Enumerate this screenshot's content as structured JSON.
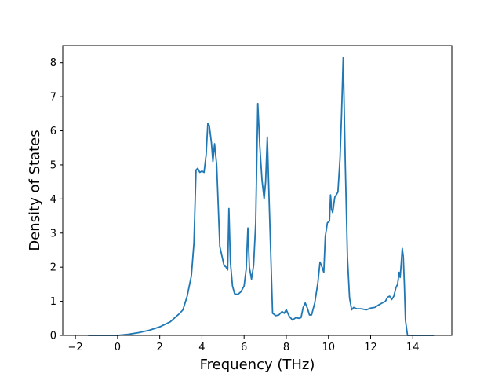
{
  "chart_data": {
    "type": "line",
    "title": "",
    "xlabel": "Frequency (THz)",
    "ylabel": "Density of States",
    "xlim": [
      -2.6,
      15.85
    ],
    "ylim": [
      0,
      8.5
    ],
    "xticks": [
      -2,
      0,
      2,
      4,
      6,
      8,
      10,
      12,
      14
    ],
    "yticks": [
      0,
      1,
      2,
      3,
      4,
      5,
      6,
      7,
      8
    ],
    "grid": false,
    "legend": "none",
    "line_color": "#1f77b4",
    "series": [
      {
        "x": [
          -1.4,
          0.0,
          0.5,
          1.0,
          1.5,
          2.0,
          2.5,
          2.9,
          3.1,
          3.3,
          3.5,
          3.62,
          3.72,
          3.8,
          3.9,
          4.0,
          4.1,
          4.2,
          4.28,
          4.35,
          4.45,
          4.52,
          4.6,
          4.7,
          4.85,
          5.05,
          5.15,
          5.22,
          5.28,
          5.35,
          5.45,
          5.55,
          5.7,
          5.85,
          6.0,
          6.1,
          6.18,
          6.25,
          6.35,
          6.45,
          6.55,
          6.65,
          6.75,
          6.85,
          6.95,
          7.02,
          7.1,
          7.2,
          7.35,
          7.5,
          7.65,
          7.8,
          7.9,
          8.0,
          8.15,
          8.3,
          8.45,
          8.6,
          8.7,
          8.8,
          8.9,
          9.0,
          9.1,
          9.2,
          9.35,
          9.5,
          9.6,
          9.7,
          9.78,
          9.85,
          9.95,
          10.05,
          10.1,
          10.15,
          10.2,
          10.3,
          10.45,
          10.55,
          10.62,
          10.7,
          10.8,
          10.9,
          11.0,
          11.1,
          11.2,
          11.35,
          11.55,
          11.8,
          12.0,
          12.2,
          12.4,
          12.55,
          12.7,
          12.8,
          12.9,
          13.0,
          13.1,
          13.2,
          13.28,
          13.35,
          13.4,
          13.45,
          13.5,
          13.55,
          13.6,
          13.65,
          13.75,
          13.9,
          14.5,
          15.0
        ],
        "y": [
          0.0,
          0.0,
          0.03,
          0.08,
          0.15,
          0.25,
          0.4,
          0.62,
          0.75,
          1.15,
          1.75,
          2.7,
          4.85,
          4.9,
          4.78,
          4.82,
          4.78,
          5.3,
          6.22,
          6.15,
          5.65,
          5.1,
          5.62,
          5.0,
          2.6,
          2.05,
          2.0,
          1.92,
          3.72,
          2.15,
          1.45,
          1.22,
          1.2,
          1.28,
          1.45,
          1.95,
          3.15,
          2.0,
          1.65,
          2.05,
          3.3,
          6.8,
          5.5,
          4.55,
          4.0,
          4.5,
          5.82,
          3.7,
          0.65,
          0.58,
          0.6,
          0.7,
          0.65,
          0.75,
          0.55,
          0.45,
          0.52,
          0.5,
          0.52,
          0.82,
          0.95,
          0.8,
          0.6,
          0.6,
          0.95,
          1.55,
          2.15,
          2.0,
          1.85,
          2.9,
          3.3,
          3.35,
          4.12,
          3.7,
          3.6,
          4.05,
          4.2,
          5.2,
          6.45,
          8.15,
          5.0,
          2.3,
          1.1,
          0.75,
          0.82,
          0.78,
          0.78,
          0.75,
          0.8,
          0.82,
          0.9,
          0.95,
          1.0,
          1.12,
          1.15,
          1.05,
          1.15,
          1.4,
          1.5,
          1.85,
          1.7,
          2.1,
          2.55,
          2.3,
          1.5,
          0.45,
          0.0,
          0.0,
          0.0,
          0.0
        ]
      }
    ]
  }
}
